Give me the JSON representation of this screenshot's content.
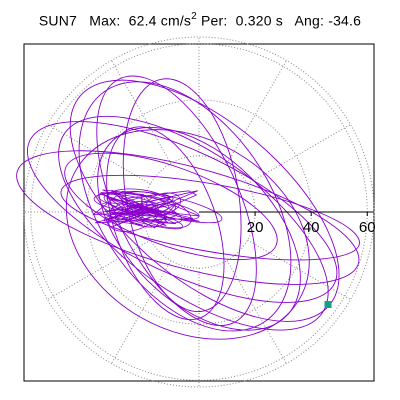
{
  "title": {
    "station": "SUN7",
    "max_label": "Max:",
    "max_value": "62.4",
    "max_unit_base": "cm/s",
    "max_unit_exp": "2",
    "per_label": "Per:",
    "per_value": "0.320 s",
    "ang_label": "Ang:",
    "ang_value": "-34.6"
  },
  "chart_data": {
    "type": "scatter",
    "description_free": true,
    "polar_rings": [
      20,
      40,
      60
    ],
    "radial_tick_labels": [
      "20",
      "40",
      "60"
    ],
    "radial_max": 62.4,
    "radial_direction_deg": 0,
    "spoke_angles_deg": [
      30,
      60,
      90,
      120,
      150,
      180,
      210,
      240,
      270,
      300,
      330
    ],
    "colors": {
      "trace": "#8800cc",
      "marker": "#14a080",
      "grid": "#888888",
      "axis": "#000000",
      "frame": "#000000"
    },
    "ellipses": [
      {
        "cx": -4,
        "cy": -2,
        "a": 63,
        "b": 18,
        "rot": -15
      },
      {
        "cx": -6,
        "cy": 0,
        "a": 60,
        "b": 22,
        "rot": -25
      },
      {
        "cx": -2,
        "cy": -4,
        "a": 56,
        "b": 25,
        "rot": -35
      },
      {
        "cx": -5,
        "cy": 2,
        "a": 50,
        "b": 30,
        "rot": -55
      },
      {
        "cx": -8,
        "cy": 4,
        "a": 48,
        "b": 22,
        "rot": -65
      },
      {
        "cx": 0,
        "cy": -6,
        "a": 44,
        "b": 26,
        "rot": -45
      },
      {
        "cx": -10,
        "cy": 2,
        "a": 40,
        "b": 14,
        "rot": -20
      },
      {
        "cx": -4,
        "cy": -8,
        "a": 46,
        "b": 34,
        "rot": -30
      },
      {
        "cx": -12,
        "cy": -4,
        "a": 36,
        "b": 18,
        "rot": -70
      },
      {
        "cx": 4,
        "cy": -2,
        "a": 54,
        "b": 12,
        "rot": -10
      },
      {
        "cx": -6,
        "cy": 6,
        "a": 42,
        "b": 20,
        "rot": -80
      },
      {
        "cx": 2,
        "cy": 4,
        "a": 58,
        "b": 28,
        "rot": -40
      }
    ],
    "core_cluster": {
      "cx": -18,
      "cy": 1,
      "rx": 20,
      "ry": 7,
      "count": 55
    },
    "end_point": {
      "x": 46,
      "y": -33
    }
  }
}
